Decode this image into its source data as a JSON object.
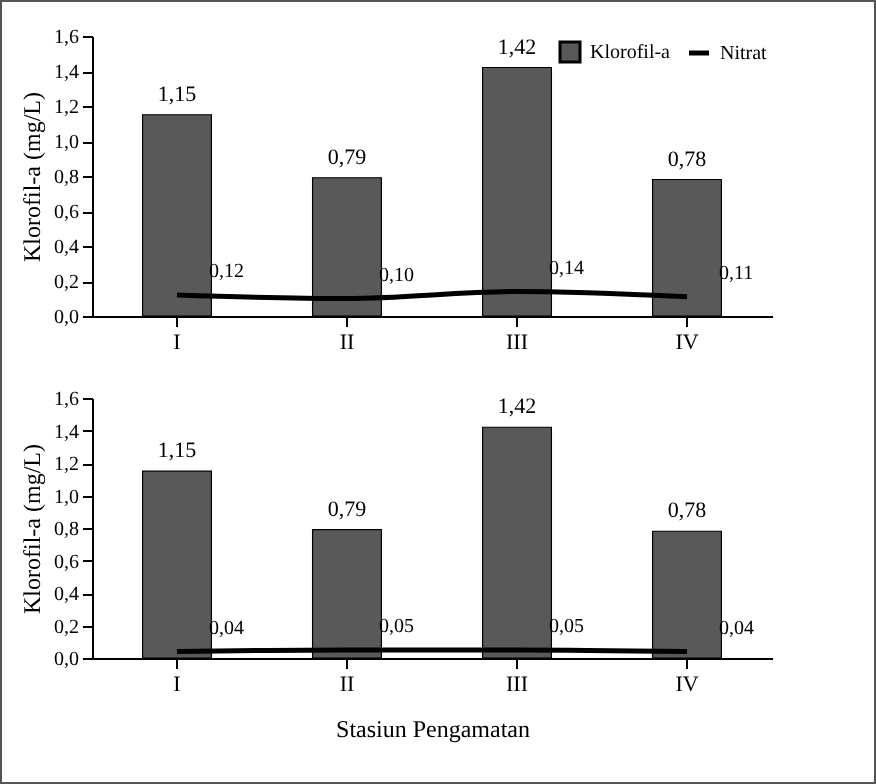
{
  "chart_data": [
    {
      "type": "bar",
      "ylabel": "Klorofil-a (mg/L)",
      "categories": [
        "I",
        "II",
        "III",
        "IV"
      ],
      "series": [
        {
          "name": "Klorofil-a",
          "type": "bar",
          "color": "#595959",
          "values": [
            1.15,
            0.79,
            1.42,
            0.78
          ],
          "value_labels": [
            "1,15",
            "0,79",
            "1,42",
            "0,78"
          ]
        },
        {
          "name": "Nitrat",
          "type": "line",
          "color": "#000000",
          "values": [
            0.12,
            0.1,
            0.14,
            0.11
          ],
          "value_labels": [
            "0,12",
            "0,10",
            "0,14",
            "0,11"
          ]
        }
      ],
      "ylim": [
        0,
        1.6
      ],
      "yticks": [
        {
          "value": 0,
          "label": "0,0"
        },
        {
          "value": 0.2,
          "label": "0,2"
        },
        {
          "value": 0.4,
          "label": "0,4"
        },
        {
          "value": 0.6,
          "label": "0,6"
        },
        {
          "value": 0.8,
          "label": "0,8"
        },
        {
          "value": 1.0,
          "label": "1,0"
        },
        {
          "value": 1.2,
          "label": "1,2"
        },
        {
          "value": 1.4,
          "label": "1,4"
        },
        {
          "value": 1.6,
          "label": "1,6"
        }
      ],
      "grid": false,
      "legend": "top right"
    },
    {
      "type": "bar",
      "ylabel": "Klorofil-a (mg/L)",
      "xlabel": "Stasiun Pengamatan",
      "categories": [
        "I",
        "II",
        "III",
        "IV"
      ],
      "series": [
        {
          "type": "bar",
          "color": "#595959",
          "values": [
            1.15,
            0.79,
            1.42,
            0.78
          ],
          "value_labels": [
            "1,15",
            "0,79",
            "1,42",
            "0,78"
          ]
        },
        {
          "type": "line",
          "color": "#000000",
          "values": [
            0.04,
            0.05,
            0.05,
            0.04
          ],
          "value_labels": [
            "0,04",
            "0,05",
            "0,05",
            "0,04"
          ]
        }
      ],
      "ylim": [
        0,
        1.6
      ],
      "yticks": [
        {
          "value": 0,
          "label": "0,0"
        },
        {
          "value": 0.2,
          "label": "0,2"
        },
        {
          "value": 0.4,
          "label": "0,4"
        },
        {
          "value": 0.6,
          "label": "0,6"
        },
        {
          "value": 0.8,
          "label": "0,8"
        },
        {
          "value": 1.0,
          "label": "1,0"
        },
        {
          "value": 1.2,
          "label": "1,2"
        },
        {
          "value": 1.4,
          "label": "1,4"
        },
        {
          "value": 1.6,
          "label": "1,6"
        }
      ],
      "grid": false
    }
  ]
}
